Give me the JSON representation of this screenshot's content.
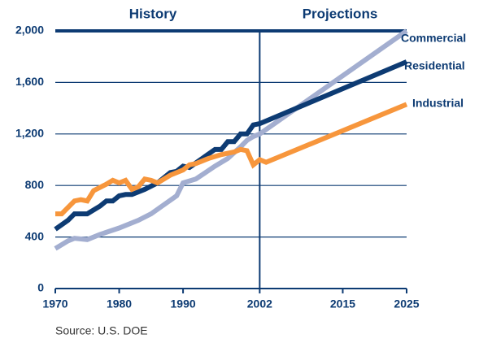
{
  "chart_data": {
    "type": "line",
    "annotations": [
      "History",
      "Projections"
    ],
    "source": "Source: U.S. DOE",
    "series": [
      {
        "name": "Commercial",
        "color": "#a3aed0",
        "x": [
          1970,
          1972,
          1973,
          1975,
          1977,
          1980,
          1983,
          1985,
          1987,
          1989,
          1990,
          1992,
          1995,
          1997,
          1999,
          2000,
          2001,
          2002,
          2025
        ],
        "values": [
          310,
          370,
          390,
          380,
          420,
          470,
          530,
          580,
          650,
          720,
          820,
          850,
          950,
          1010,
          1100,
          1150,
          1180,
          1200,
          2000
        ]
      },
      {
        "name": "Residential",
        "color": "#0d3b73",
        "x": [
          1970,
          1972,
          1973,
          1975,
          1977,
          1978,
          1979,
          1980,
          1981,
          1982,
          1984,
          1986,
          1988,
          1989,
          1990,
          1991,
          1993,
          1995,
          1996,
          1997,
          1998,
          1999,
          2000,
          2001,
          2002,
          2025
        ],
        "values": [
          460,
          530,
          580,
          580,
          640,
          680,
          680,
          720,
          730,
          730,
          770,
          820,
          900,
          910,
          950,
          940,
          1010,
          1080,
          1080,
          1140,
          1140,
          1200,
          1200,
          1270,
          1280,
          1760
        ]
      },
      {
        "name": "Industrial",
        "color": "#f7963c",
        "x": [
          1970,
          1971,
          1973,
          1974,
          1975,
          1976,
          1978,
          1979,
          1980,
          1981,
          1982,
          1983,
          1984,
          1985,
          1986,
          1987,
          1988,
          1990,
          1991,
          1992,
          1994,
          1996,
          1997,
          1998,
          1999,
          2000,
          2001,
          2002,
          2003,
          2025
        ],
        "values": [
          580,
          580,
          680,
          690,
          680,
          760,
          810,
          840,
          820,
          840,
          770,
          790,
          850,
          840,
          820,
          850,
          880,
          920,
          960,
          970,
          1010,
          1040,
          1050,
          1060,
          1080,
          1070,
          960,
          1000,
          980,
          1430
        ]
      }
    ],
    "xlim": [
      1970,
      2025
    ],
    "xticks": [
      1970,
      1980,
      1990,
      2002,
      2015,
      2025
    ],
    "ylim": [
      0,
      2000
    ],
    "yticks": [
      0,
      400,
      800,
      {
        "value": 1200,
        "label": "1,200"
      },
      {
        "value": 1600,
        "label": "1,600"
      },
      {
        "value": 2000,
        "label": "2,000"
      }
    ],
    "grid": true
  }
}
